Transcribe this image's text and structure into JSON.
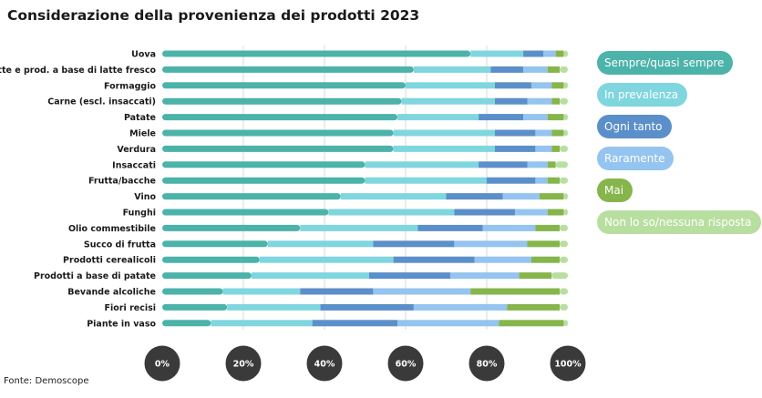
{
  "title": "Considerazione della provenienza dei prodotti 2023",
  "source": "Fonte: Demoscope",
  "colors": {
    "Sempre/quasi sempre": "#4bb3a9",
    "In prevalenza": "#7fd6df",
    "Ogni tanto": "#5b8fc9",
    "Raramente": "#94c4ef",
    "Mai": "#86b54b",
    "Non lo so/nessuna risposta": "#b8dfa0"
  },
  "legend_text_colors": {
    "Sempre/quasi sempre": "#ffffff",
    "In prevalenza": "#ffffff",
    "Ogni tanto": "#ffffff",
    "Raramente": "#ffffff",
    "Mai": "#ffffff",
    "Non lo so/nessuna risposta": "#ffffff"
  },
  "chart_data": {
    "type": "bar",
    "orientation": "horizontal",
    "stacked": true,
    "xlim": [
      0,
      100
    ],
    "x_ticks": [
      "0%",
      "20%",
      "40%",
      "60%",
      "80%",
      "100%"
    ],
    "grid": true,
    "legend_position": "right",
    "categories": [
      "Uova",
      "Latte e prod. a base di latte fresco",
      "Formaggio",
      "Carne (escl. insaccati)",
      "Patate",
      "Miele",
      "Verdura",
      "Insaccati",
      "Frutta/bacche",
      "Vino",
      "Funghi",
      "Olio commestibile",
      "Succo di frutta",
      "Prodotti cerealicoli",
      "Prodotti a base di patate",
      "Bevande alcoliche",
      "Fiori recisi",
      "Piante in vaso"
    ],
    "series": [
      {
        "name": "Sempre/quasi sempre",
        "values": [
          76,
          62,
          60,
          59,
          58,
          57,
          57,
          50,
          50,
          44,
          41,
          34,
          26,
          24,
          22,
          15,
          16,
          12
        ]
      },
      {
        "name": "In prevalenza",
        "values": [
          13,
          19,
          22,
          23,
          20,
          25,
          25,
          28,
          30,
          26,
          31,
          29,
          26,
          33,
          29,
          19,
          23,
          25
        ]
      },
      {
        "name": "Ogni tanto",
        "values": [
          5,
          8,
          9,
          8,
          11,
          10,
          10,
          12,
          12,
          14,
          15,
          16,
          20,
          20,
          20,
          18,
          23,
          21
        ]
      },
      {
        "name": "Raramente",
        "values": [
          3,
          6,
          5,
          6,
          6,
          4,
          4,
          5,
          3,
          9,
          8,
          13,
          18,
          14,
          17,
          24,
          23,
          25
        ]
      },
      {
        "name": "Mai",
        "values": [
          2,
          3,
          3,
          2,
          4,
          3,
          2,
          2,
          3,
          6,
          4,
          6,
          8,
          7,
          8,
          22,
          13,
          16
        ]
      },
      {
        "name": "Non lo so/nessuna risposta",
        "values": [
          1,
          2,
          1,
          2,
          1,
          1,
          2,
          3,
          2,
          1,
          1,
          2,
          2,
          2,
          4,
          2,
          2,
          1
        ]
      }
    ]
  }
}
